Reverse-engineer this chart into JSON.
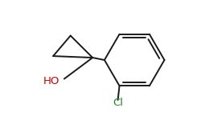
{
  "background_color": "#ffffff",
  "bond_color": "#1a1a1a",
  "ho_color": "#cc0000",
  "cl_color": "#228B22",
  "ho_label": "HO",
  "cl_label": "Cl",
  "ho_fontsize": 9.5,
  "cl_fontsize": 9.5,
  "figsize": [
    2.5,
    1.5
  ],
  "dpi": 100
}
